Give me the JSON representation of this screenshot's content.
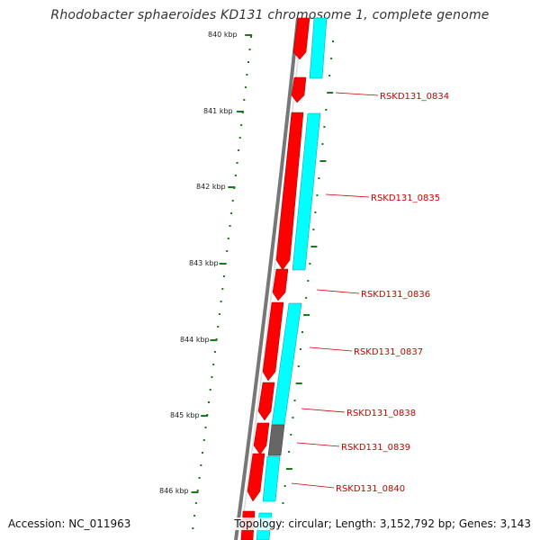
{
  "title": "Rhodobacter sphaeroides KD131 chromosome 1, complete genome",
  "accession": "Accession: NC_011963",
  "summary": "Topology: circular; Length: 3,152,792 bp; Genes: 3,143",
  "ticks": [
    {
      "label": "840 kbp",
      "kbp": 840
    },
    {
      "label": "841 kbp",
      "kbp": 841
    },
    {
      "label": "842 kbp",
      "kbp": 842
    },
    {
      "label": "843 kbp",
      "kbp": 843
    },
    {
      "label": "844 kbp",
      "kbp": 844
    },
    {
      "label": "845 kbp",
      "kbp": 845
    },
    {
      "label": "846 kbp",
      "kbp": 846
    }
  ],
  "genes": [
    {
      "label": "RSKD131_0834"
    },
    {
      "label": "RSKD131_0835"
    },
    {
      "label": "RSKD131_0836"
    },
    {
      "label": "RSKD131_0837"
    },
    {
      "label": "RSKD131_0838"
    },
    {
      "label": "RSKD131_0839"
    },
    {
      "label": "RSKD131_0840"
    }
  ],
  "colors": {
    "backbone": "#777777",
    "cds_forward": "#ff0000",
    "feature_cyan": "#00ffff",
    "feature_gray": "#666666",
    "tick": "#1a7a1a",
    "label": "#cc0000"
  }
}
